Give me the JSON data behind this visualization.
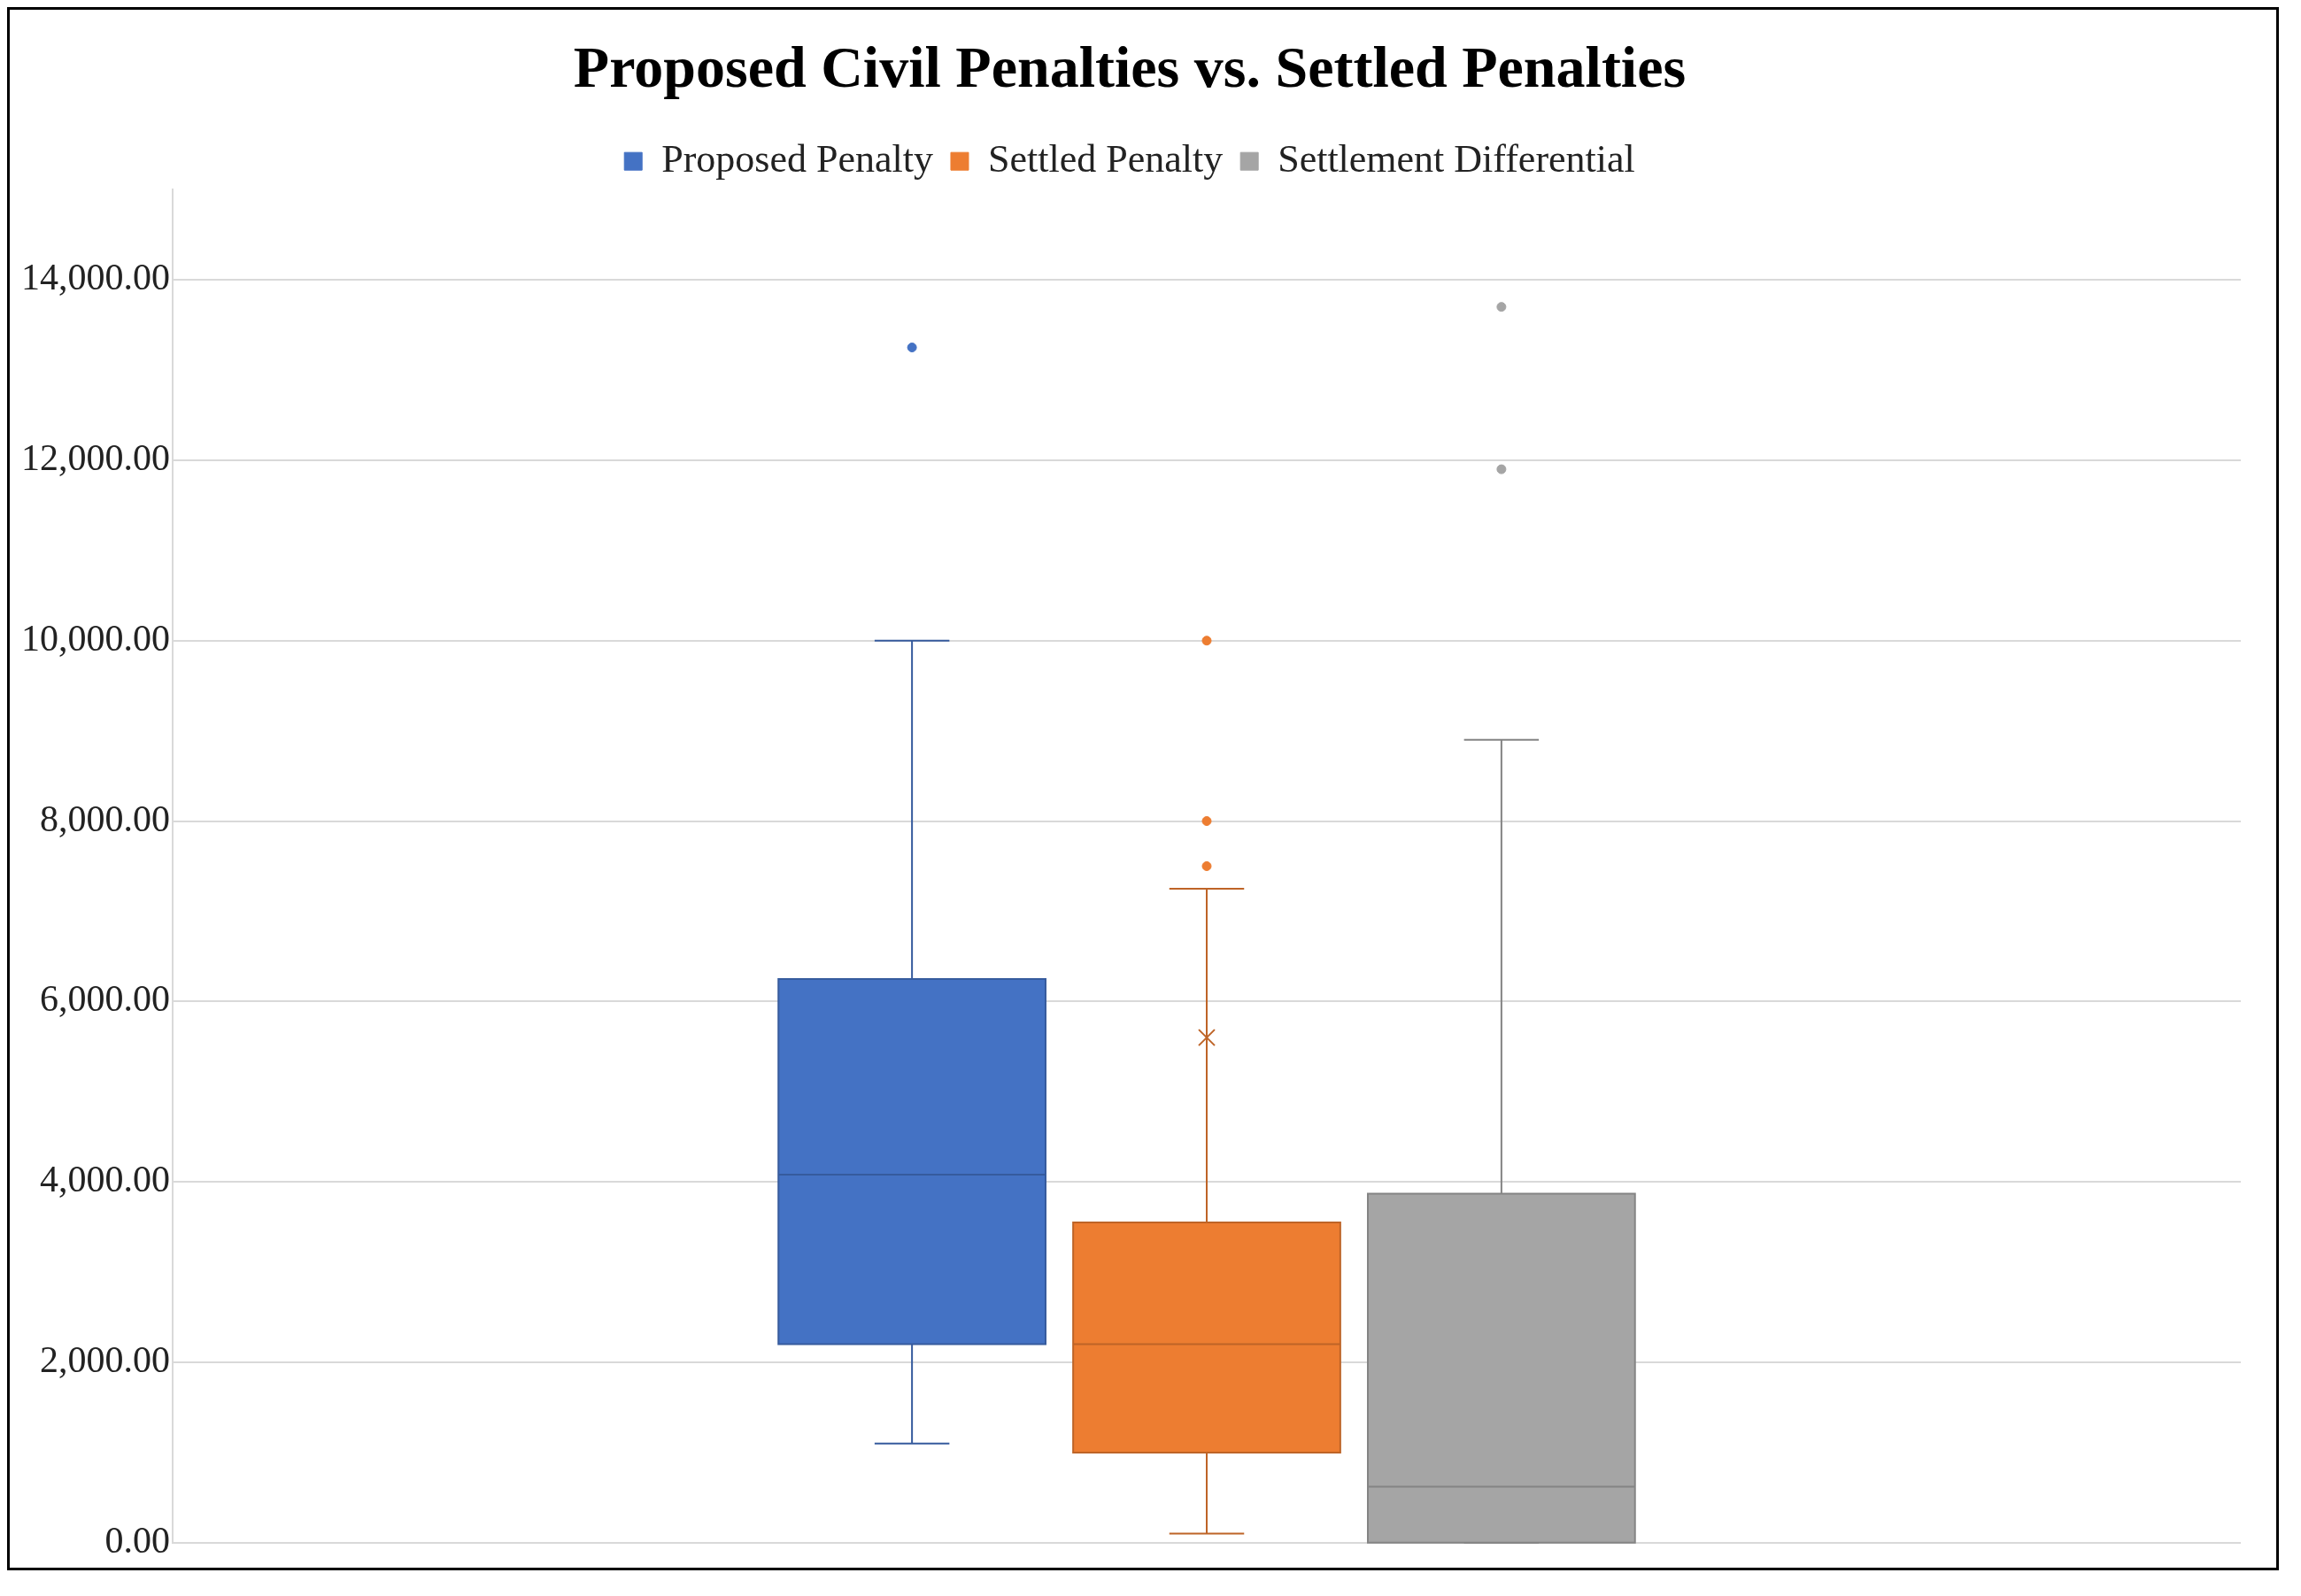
{
  "chart_data": {
    "type": "box",
    "title": "Proposed Civil Penalties vs. Settled Penalties",
    "categories": [
      null
    ],
    "series": [
      {
        "name": "Proposed Penalty",
        "color": "#4472c4",
        "boxes": [
          {
            "low": 1100,
            "q1": 2200,
            "median": 4080,
            "q3": 6250,
            "high": 10000,
            "outliers": [
              13250
            ]
          }
        ]
      },
      {
        "name": "Settled Penalty",
        "color": "#ed7d31",
        "boxes": [
          {
            "low": 100,
            "q1": 1000,
            "median": 2200,
            "q3": 3550,
            "high": 7250,
            "mean": 5600,
            "outliers": [
              7500,
              8000,
              10000
            ]
          }
        ]
      },
      {
        "name": "Settlement Differential",
        "color": "#a5a5a5",
        "boxes": [
          {
            "low": 0,
            "q1": 0,
            "median": 620,
            "q3": 3870,
            "high": 8900,
            "outliers": [
              11900,
              13700
            ]
          }
        ]
      }
    ],
    "ylim": [
      0,
      15000
    ],
    "yticks": [
      {
        "value": 0,
        "label": "0.00"
      },
      {
        "value": 2000,
        "label": "2,000.00"
      },
      {
        "value": 4000,
        "label": "4,000.00"
      },
      {
        "value": 6000,
        "label": "6,000.00"
      },
      {
        "value": 8000,
        "label": "8,000.00"
      },
      {
        "value": 10000,
        "label": "10,000.00"
      },
      {
        "value": 12000,
        "label": "12,000.00"
      },
      {
        "value": 14000,
        "label": "14,000.00"
      }
    ],
    "grid": "y",
    "legend": "top",
    "marker": "circle"
  }
}
